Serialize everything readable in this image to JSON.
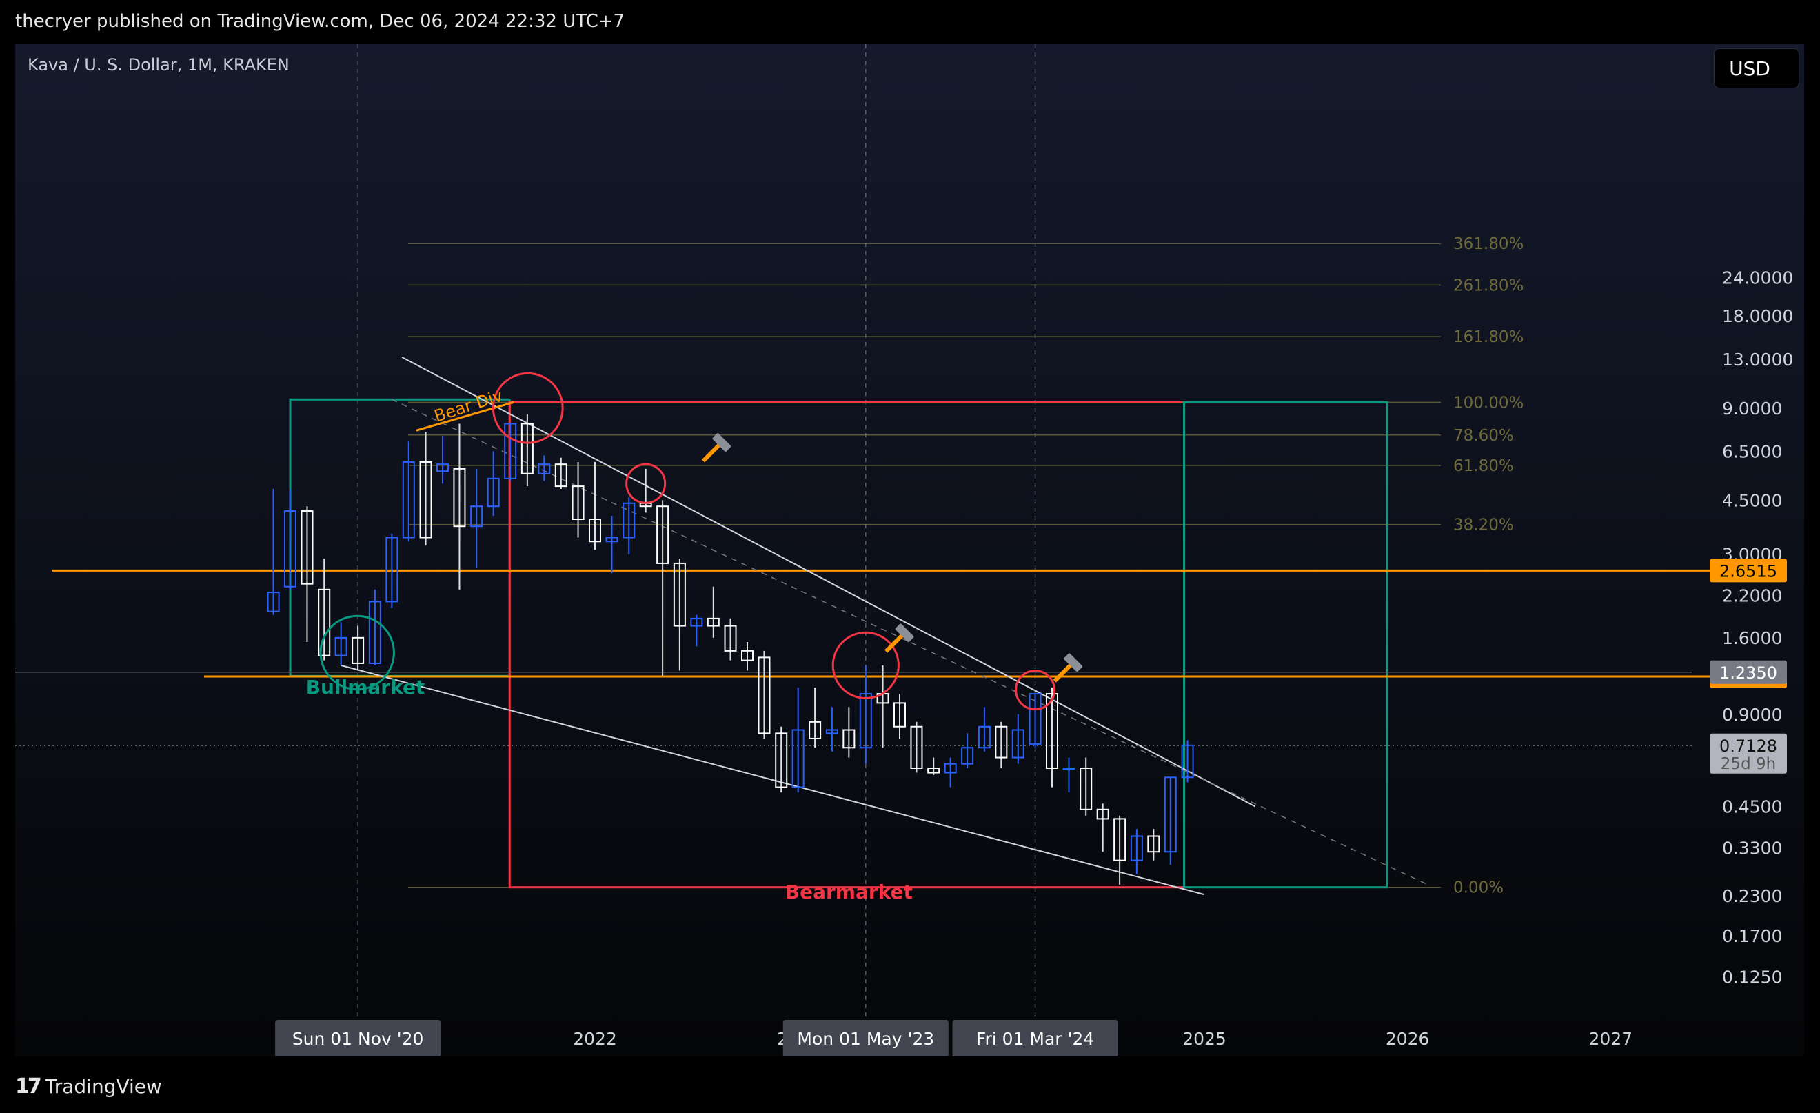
{
  "header": {
    "publisher": "thecryer published on TradingView.com, Dec 06, 2024 22:32 UTC+7"
  },
  "symbol": {
    "title": "Kava / U. S. Dollar, 1M, KRAKEN"
  },
  "currency_button": {
    "label": "USD"
  },
  "footer": {
    "brand": "TradingView",
    "brand_icon": "tradingview-logo-icon"
  },
  "colors": {
    "up": "#2962ff",
    "down": "#ffffff",
    "orange": "#ff9800",
    "green": "#089981",
    "red": "#f23645",
    "fib": "#6b6b3a"
  },
  "chart_data": {
    "type": "candlestick",
    "scale": "log",
    "ylim": [
      0.095,
      38
    ],
    "price_ticks": [
      24,
      18,
      13,
      9,
      6.5,
      4.5,
      3,
      2.2,
      1.6,
      0.9,
      0.45,
      0.33,
      0.23,
      0.17,
      0.125
    ],
    "price_tick_labels": [
      "24.0000",
      "18.0000",
      "13.0000",
      "9.0000",
      "6.5000",
      "4.5000",
      "3.0000",
      "2.2000",
      "1.6000",
      "0.9000",
      "0.4500",
      "0.3300",
      "0.2300",
      "0.1700",
      "0.1250"
    ],
    "x_ticks": [
      {
        "label": "2022",
        "t": 2022.0
      },
      {
        "label": "2025",
        "t": 2025.0
      },
      {
        "label": "2026",
        "t": 2026.0
      },
      {
        "label": "2027",
        "t": 2027.0
      }
    ],
    "crosshair_dates": [
      {
        "label": "Sun 01 Nov '20",
        "t": 2020.833
      },
      {
        "label": "Mon 01 May '23",
        "t": 2023.333
      },
      {
        "label": "Fri 01 Mar '24",
        "t": 2024.167
      }
    ],
    "candles": [
      {
        "t": 2020.417,
        "o": 1.95,
        "h": 4.9,
        "l": 1.9,
        "c": 2.25
      },
      {
        "t": 2020.5,
        "o": 2.35,
        "h": 4.9,
        "l": 2.3,
        "c": 4.15
      },
      {
        "t": 2020.583,
        "o": 4.15,
        "h": 4.3,
        "l": 1.55,
        "c": 2.4
      },
      {
        "t": 2020.667,
        "o": 2.3,
        "h": 2.9,
        "l": 1.35,
        "c": 1.4
      },
      {
        "t": 2020.75,
        "o": 1.4,
        "h": 1.8,
        "l": 1.3,
        "c": 1.6
      },
      {
        "t": 2020.833,
        "o": 1.6,
        "h": 1.75,
        "l": 1.25,
        "c": 1.32
      },
      {
        "t": 2020.917,
        "o": 1.32,
        "h": 2.3,
        "l": 1.3,
        "c": 2.1
      },
      {
        "t": 2021.0,
        "o": 2.1,
        "h": 3.5,
        "l": 2.0,
        "c": 3.4
      },
      {
        "t": 2021.083,
        "o": 3.4,
        "h": 7.0,
        "l": 3.3,
        "c": 6.0
      },
      {
        "t": 2021.167,
        "o": 6.0,
        "h": 7.5,
        "l": 3.2,
        "c": 3.4
      },
      {
        "t": 2021.25,
        "o": 5.6,
        "h": 7.3,
        "l": 5.1,
        "c": 5.9
      },
      {
        "t": 2021.333,
        "o": 5.7,
        "h": 8.0,
        "l": 2.3,
        "c": 3.7
      },
      {
        "t": 2021.417,
        "o": 3.7,
        "h": 5.7,
        "l": 2.7,
        "c": 4.3
      },
      {
        "t": 2021.5,
        "o": 4.3,
        "h": 6.5,
        "l": 4.0,
        "c": 5.3
      },
      {
        "t": 2021.583,
        "o": 5.3,
        "h": 8.0,
        "l": 5.2,
        "c": 8.0
      },
      {
        "t": 2021.667,
        "o": 8.0,
        "h": 8.6,
        "l": 5.0,
        "c": 5.5
      },
      {
        "t": 2021.75,
        "o": 5.5,
        "h": 6.3,
        "l": 5.2,
        "c": 5.9
      },
      {
        "t": 2021.833,
        "o": 5.9,
        "h": 6.2,
        "l": 4.9,
        "c": 5.0
      },
      {
        "t": 2021.917,
        "o": 5.0,
        "h": 6.0,
        "l": 3.4,
        "c": 3.9
      },
      {
        "t": 2022.0,
        "o": 3.9,
        "h": 6.0,
        "l": 3.1,
        "c": 3.3
      },
      {
        "t": 2022.083,
        "o": 3.3,
        "h": 4.0,
        "l": 2.6,
        "c": 3.4
      },
      {
        "t": 2022.167,
        "o": 3.4,
        "h": 4.6,
        "l": 3.0,
        "c": 4.4
      },
      {
        "t": 2022.25,
        "o": 4.4,
        "h": 5.7,
        "l": 4.1,
        "c": 4.3
      },
      {
        "t": 2022.333,
        "o": 4.3,
        "h": 4.5,
        "l": 1.2,
        "c": 2.8
      },
      {
        "t": 2022.417,
        "o": 2.8,
        "h": 2.9,
        "l": 1.25,
        "c": 1.75
      },
      {
        "t": 2022.5,
        "o": 1.75,
        "h": 1.9,
        "l": 1.5,
        "c": 1.85
      },
      {
        "t": 2022.583,
        "o": 1.85,
        "h": 2.35,
        "l": 1.6,
        "c": 1.75
      },
      {
        "t": 2022.667,
        "o": 1.75,
        "h": 1.85,
        "l": 1.35,
        "c": 1.45
      },
      {
        "t": 2022.75,
        "o": 1.45,
        "h": 1.55,
        "l": 1.25,
        "c": 1.35
      },
      {
        "t": 2022.833,
        "o": 1.38,
        "h": 1.45,
        "l": 0.75,
        "c": 0.78
      },
      {
        "t": 2022.917,
        "o": 0.78,
        "h": 0.82,
        "l": 0.5,
        "c": 0.52
      },
      {
        "t": 2023.0,
        "o": 0.52,
        "h": 1.1,
        "l": 0.5,
        "c": 0.8
      },
      {
        "t": 2023.083,
        "o": 0.85,
        "h": 1.1,
        "l": 0.7,
        "c": 0.75
      },
      {
        "t": 2023.167,
        "o": 0.78,
        "h": 0.95,
        "l": 0.68,
        "c": 0.8
      },
      {
        "t": 2023.25,
        "o": 0.8,
        "h": 0.95,
        "l": 0.65,
        "c": 0.7
      },
      {
        "t": 2023.333,
        "o": 0.7,
        "h": 1.3,
        "l": 0.62,
        "c": 1.05
      },
      {
        "t": 2023.417,
        "o": 1.05,
        "h": 1.3,
        "l": 0.7,
        "c": 0.98
      },
      {
        "t": 2023.5,
        "o": 0.98,
        "h": 1.05,
        "l": 0.75,
        "c": 0.82
      },
      {
        "t": 2023.583,
        "o": 0.82,
        "h": 0.85,
        "l": 0.58,
        "c": 0.6
      },
      {
        "t": 2023.667,
        "o": 0.6,
        "h": 0.65,
        "l": 0.57,
        "c": 0.58
      },
      {
        "t": 2023.75,
        "o": 0.58,
        "h": 0.65,
        "l": 0.52,
        "c": 0.62
      },
      {
        "t": 2023.833,
        "o": 0.62,
        "h": 0.78,
        "l": 0.6,
        "c": 0.7
      },
      {
        "t": 2023.917,
        "o": 0.7,
        "h": 0.95,
        "l": 0.68,
        "c": 0.82
      },
      {
        "t": 2024.0,
        "o": 0.82,
        "h": 0.85,
        "l": 0.6,
        "c": 0.65
      },
      {
        "t": 2024.083,
        "o": 0.65,
        "h": 0.9,
        "l": 0.62,
        "c": 0.8
      },
      {
        "t": 2024.167,
        "o": 0.72,
        "h": 1.05,
        "l": 0.7,
        "c": 1.05
      },
      {
        "t": 2024.25,
        "o": 1.05,
        "h": 1.1,
        "l": 0.52,
        "c": 0.6
      },
      {
        "t": 2024.333,
        "o": 0.6,
        "h": 0.65,
        "l": 0.5,
        "c": 0.6
      },
      {
        "t": 2024.417,
        "o": 0.6,
        "h": 0.65,
        "l": 0.42,
        "c": 0.44
      },
      {
        "t": 2024.5,
        "o": 0.44,
        "h": 0.46,
        "l": 0.32,
        "c": 0.41
      },
      {
        "t": 2024.583,
        "o": 0.41,
        "h": 0.42,
        "l": 0.25,
        "c": 0.3
      },
      {
        "t": 2024.667,
        "o": 0.3,
        "h": 0.38,
        "l": 0.27,
        "c": 0.36
      },
      {
        "t": 2024.75,
        "o": 0.36,
        "h": 0.38,
        "l": 0.3,
        "c": 0.32
      },
      {
        "t": 2024.833,
        "o": 0.32,
        "h": 0.56,
        "l": 0.29,
        "c": 0.56
      },
      {
        "t": 2024.917,
        "o": 0.56,
        "h": 0.74,
        "l": 0.54,
        "c": 0.7128
      }
    ],
    "fib_levels": [
      {
        "label": "361.80%",
        "price": 31
      },
      {
        "label": "261.80%",
        "price": 22.7
      },
      {
        "label": "161.80%",
        "price": 15.4
      },
      {
        "label": "100.00%",
        "price": 9.4
      },
      {
        "label": "78.60%",
        "price": 7.35
      },
      {
        "label": "61.80%",
        "price": 5.85
      },
      {
        "label": "38.20%",
        "price": 3.75
      },
      {
        "label": "0.00%",
        "price": 0.245
      }
    ],
    "horizontal_levels": [
      {
        "label": "2.6515",
        "price": 2.6515,
        "color": "#ff9800"
      },
      {
        "label": "1.1955",
        "price": 1.1955,
        "color": "#ff9800"
      }
    ],
    "price_labels": [
      {
        "label": "1.2350",
        "price": 1.235,
        "bg": "#787b86"
      },
      {
        "label": "0.7128",
        "sub": "25d 9h",
        "price": 0.7128,
        "bg": "#b2b5be"
      }
    ],
    "annotations": [
      {
        "label": "Bullmarket",
        "t": 2020.87,
        "price": 1.05,
        "color": "#089981"
      },
      {
        "label": "Bearmarket",
        "t": 2023.25,
        "price": 0.225,
        "color": "#f23645"
      },
      {
        "label": "Bear Div",
        "t": 2021.45,
        "price": 8.7,
        "color": "#ff9800"
      }
    ],
    "boxes": [
      {
        "name": "bull-box",
        "t0": 2020.5,
        "t1": 2021.58,
        "p0": 1.2,
        "p1": 9.6,
        "color": "#089981"
      },
      {
        "name": "bear-box",
        "t0": 2021.58,
        "t1": 2024.9,
        "p0": 0.245,
        "p1": 9.4,
        "color": "#f23645"
      },
      {
        "name": "target-box",
        "t0": 2024.9,
        "t1": 2025.9,
        "p0": 0.245,
        "p1": 9.4,
        "color": "#089981"
      }
    ],
    "trend_lines": [
      {
        "t0": 2021.05,
        "p0": 13.2,
        "t1": 2025.25,
        "p1": 0.45,
        "color": "#d1d4dc"
      },
      {
        "t0": 2020.75,
        "p0": 1.3,
        "t1": 2025.0,
        "p1": 0.232,
        "color": "#d1d4dc"
      },
      {
        "t0": 2021.0,
        "p0": 9.6,
        "t1": 2026.1,
        "p1": 0.25,
        "color": "#7a7a7a",
        "dashed": true
      }
    ],
    "circles": [
      {
        "t": 2021.67,
        "price": 9.0,
        "r": 36,
        "color": "#f23645"
      },
      {
        "t": 2022.25,
        "price": 5.1,
        "r": 20,
        "color": "#f23645"
      },
      {
        "t": 2023.333,
        "price": 1.3,
        "r": 34,
        "color": "#f23645"
      },
      {
        "t": 2024.167,
        "price": 1.08,
        "r": 20,
        "color": "#f23645"
      },
      {
        "t": 2020.83,
        "price": 1.43,
        "r": 38,
        "color": "#089981"
      }
    ],
    "hammers": [
      {
        "t": 2022.6,
        "price": 6.7
      },
      {
        "t": 2023.5,
        "price": 1.6
      },
      {
        "t": 2024.33,
        "price": 1.28
      }
    ]
  }
}
